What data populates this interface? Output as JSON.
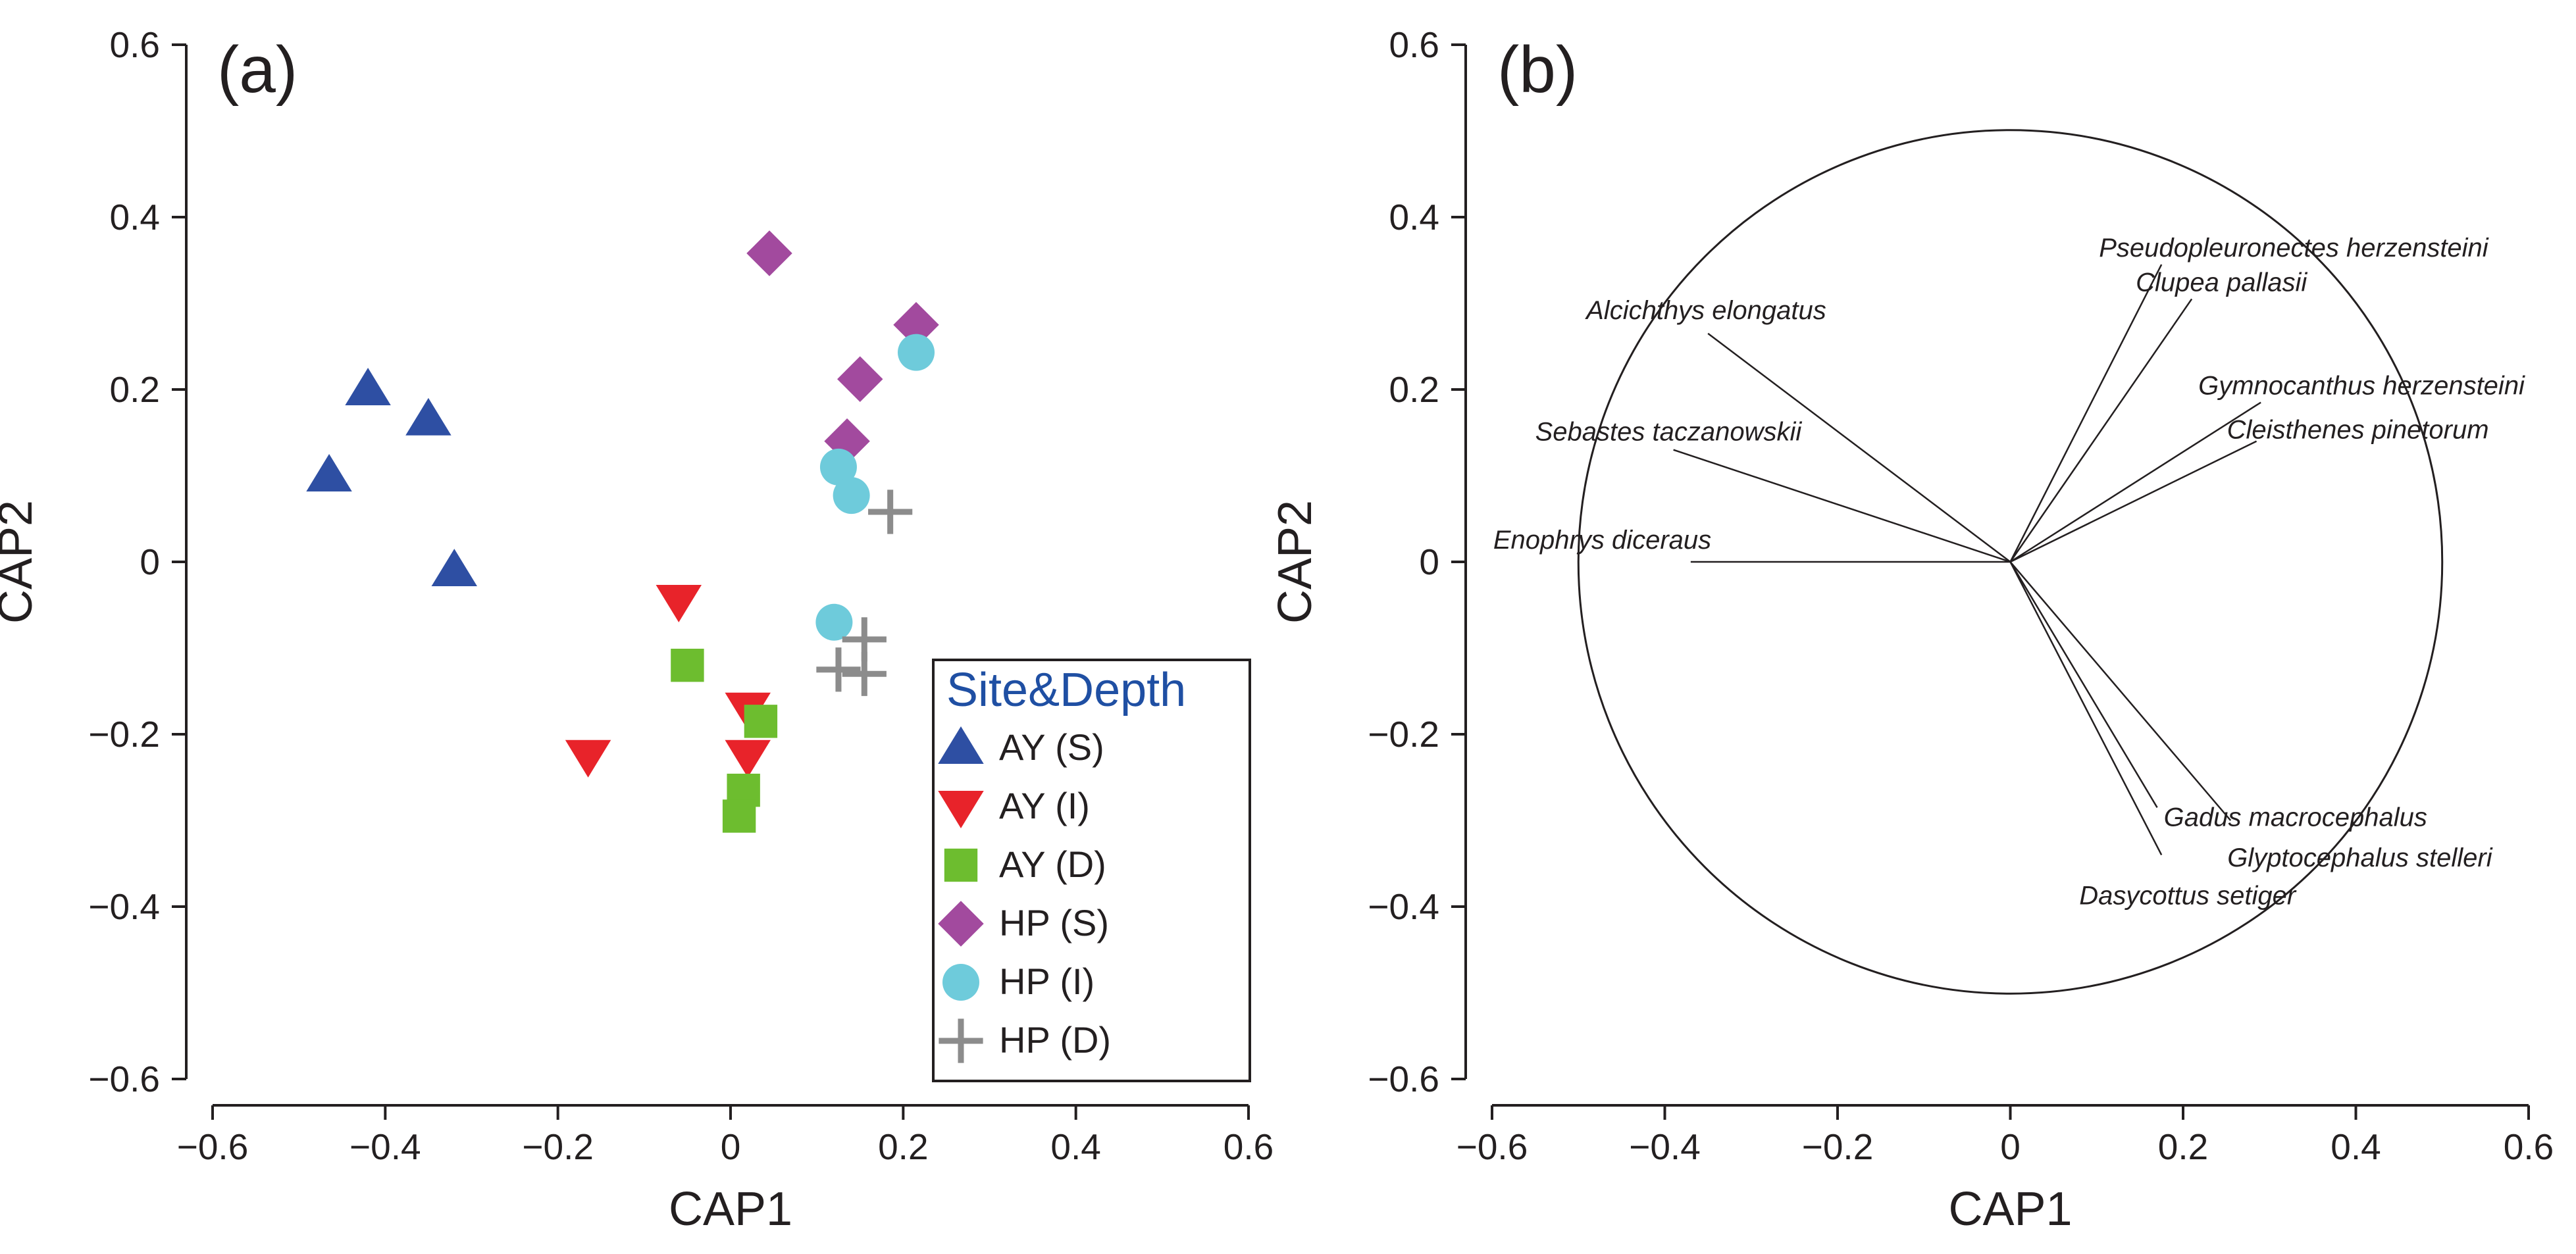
{
  "chart_data": [
    {
      "type": "scatter",
      "panel_label": "(a)",
      "xlabel": "CAP1",
      "ylabel": "CAP2",
      "xlim": [
        -0.6,
        0.6
      ],
      "ylim": [
        -0.6,
        0.6
      ],
      "x_ticks": [
        "−0.6",
        "−0.4",
        "−0.2",
        "0",
        "0.2",
        "0.4",
        "0.6"
      ],
      "y_ticks": [
        "0.6",
        "0.4",
        "0.2",
        "0",
        "−0.2",
        "−0.4",
        "−0.6"
      ],
      "legend": {
        "title": "Site&Depth",
        "placement": "bottom-right",
        "title_color": "#1f4fa3"
      },
      "series": [
        {
          "name": "AY (S)",
          "marker": "triangle-up",
          "color": "#2e4fa3",
          "points": [
            [
              -0.42,
              0.2
            ],
            [
              -0.35,
              0.165
            ],
            [
              -0.465,
              0.1
            ],
            [
              -0.32,
              -0.01
            ]
          ]
        },
        {
          "name": "AY (I)",
          "marker": "triangle-down",
          "color": "#e8232a",
          "points": [
            [
              -0.06,
              -0.045
            ],
            [
              -0.165,
              -0.225
            ],
            [
              0.02,
              -0.17
            ],
            [
              0.02,
              -0.225
            ]
          ]
        },
        {
          "name": "AY (D)",
          "marker": "square",
          "color": "#6dbd2f",
          "points": [
            [
              -0.05,
              -0.12
            ],
            [
              0.035,
              -0.185
            ],
            [
              0.015,
              -0.265
            ],
            [
              0.01,
              -0.295
            ]
          ]
        },
        {
          "name": "HP (S)",
          "marker": "diamond",
          "color": "#a24a9e",
          "points": [
            [
              0.045,
              0.358
            ],
            [
              0.215,
              0.275
            ],
            [
              0.15,
              0.212
            ],
            [
              0.135,
              0.14
            ]
          ]
        },
        {
          "name": "HP (I)",
          "marker": "circle",
          "color": "#6ecbdb",
          "points": [
            [
              0.215,
              0.243
            ],
            [
              0.125,
              0.11
            ],
            [
              0.14,
              0.077
            ],
            [
              0.12,
              -0.07
            ]
          ]
        },
        {
          "name": "HP (D)",
          "marker": "plus",
          "color": "#8c8c8c",
          "points": [
            [
              0.185,
              0.058
            ],
            [
              0.155,
              -0.09
            ],
            [
              0.125,
              -0.125
            ],
            [
              0.155,
              -0.13
            ]
          ]
        }
      ]
    },
    {
      "type": "biplot",
      "panel_label": "(b)",
      "xlabel": "CAP1",
      "ylabel": "CAP2",
      "xlim": [
        -0.6,
        0.6
      ],
      "ylim": [
        -0.6,
        0.6
      ],
      "x_ticks": [
        "−0.6",
        "−0.4",
        "−0.2",
        "0",
        "0.2",
        "0.4",
        "0.6"
      ],
      "y_ticks": [
        "0.6",
        "0.4",
        "0.2",
        "0",
        "−0.2",
        "−0.4",
        "−0.6"
      ],
      "circle_radius": 0.5,
      "vectors": [
        {
          "name": "Pseudopleuronectes herzensteini",
          "x": 0.175,
          "y": 0.345
        },
        {
          "name": "Clupea pallasii",
          "x": 0.21,
          "y": 0.305
        },
        {
          "name": "Gymnocanthus herzensteini",
          "x": 0.29,
          "y": 0.185
        },
        {
          "name": "Cleisthenes pinetorum",
          "x": 0.285,
          "y": 0.14
        },
        {
          "name": "Alcichthys elongatus",
          "x": -0.35,
          "y": 0.265
        },
        {
          "name": "Sebastes taczanowskii",
          "x": -0.39,
          "y": 0.13
        },
        {
          "name": "Enophrys diceraus",
          "x": -0.37,
          "y": 0.0
        },
        {
          "name": "Gadus macrocephalus",
          "x": 0.17,
          "y": -0.285
        },
        {
          "name": "Glyptocephalus stelleri",
          "x": 0.255,
          "y": -0.3
        },
        {
          "name": "Dasycottus setiger",
          "x": 0.175,
          "y": -0.34
        }
      ]
    }
  ]
}
